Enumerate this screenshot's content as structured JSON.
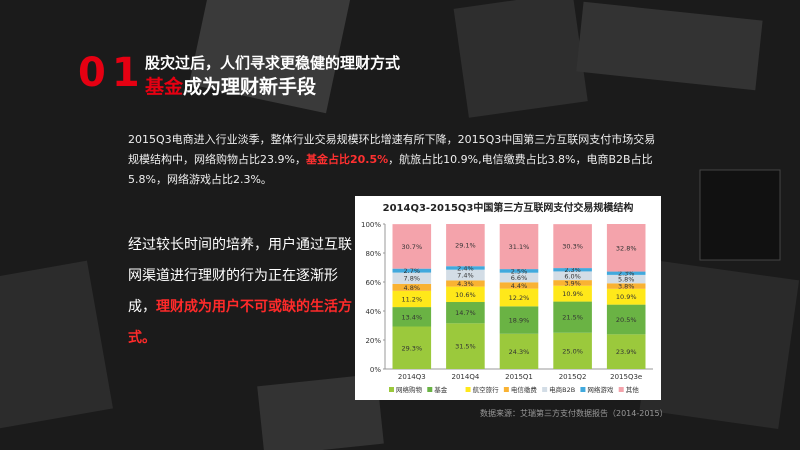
{
  "heading": {
    "number": "01",
    "line1": "股灾过后，人们寻求更稳健的理财方式",
    "line2_red": "基金",
    "line2_rest": "成为理财新手段"
  },
  "paragraph": {
    "part1": "2015Q3电商进入行业淡季，整体行业交易规模环比增速有所下降，2015Q3中国第三方互联网支付市场交易规模结构中，网络购物占比23.9%，",
    "highlight": "基金占比20.5%",
    "part2": "，航旅占比10.9%,电信缴费占比3.8%，电商B2B占比5.8%，网络游戏占比2.3%。"
  },
  "side_text": {
    "part1": "经过较长时间的培养，用户通过互联网渠道进行理财的行为正在逐渐形成，",
    "highlight": "理财成为用户不可或缺的生活方式。"
  },
  "source": "数据来源：艾瑞第三方支付数据报告（2014-2015）",
  "chart_data": {
    "type": "stacked_bar",
    "title": "2014Q3-2015Q3中国第三方互联网支付交易规模结构",
    "categories": [
      "2014Q3",
      "2014Q4",
      "2015Q1",
      "2015Q2",
      "2015Q3e"
    ],
    "ylim": [
      0,
      100
    ],
    "yticks": [
      {
        "value": 0,
        "label": "0%"
      },
      {
        "value": 20,
        "label": "20%"
      },
      {
        "value": 40,
        "label": "40%"
      },
      {
        "value": 60,
        "label": "60%"
      },
      {
        "value": 80,
        "label": "80%"
      },
      {
        "value": 100,
        "label": "100%"
      }
    ],
    "series": [
      {
        "name": "网络购物",
        "color": "#9bc93c",
        "values": [
          29.3,
          31.5,
          24.3,
          25.0,
          23.9
        ],
        "value_labels": [
          "29.3%",
          "31.5%",
          "24.3%",
          "25.0%",
          "23.9%"
        ]
      },
      {
        "name": "基金",
        "color": "#6ab344",
        "values": [
          13.4,
          14.7,
          18.9,
          21.5,
          20.5
        ],
        "value_labels": [
          "13.4%",
          "14.7%",
          "18.9%",
          "21.5%",
          "20.5%"
        ]
      },
      {
        "name": "航空旅行",
        "color": "#ffe81a",
        "values": [
          11.2,
          10.6,
          12.2,
          10.9,
          10.9
        ],
        "value_labels": [
          "11.2%",
          "10.6%",
          "12.2%",
          "10.9%",
          "10.9%"
        ]
      },
      {
        "name": "电信缴费",
        "color": "#f9b233",
        "values": [
          4.8,
          4.3,
          4.4,
          3.9,
          3.8
        ],
        "value_labels": [
          "4.8%",
          "4.3%",
          "4.4%",
          "3.9%",
          "3.8%"
        ]
      },
      {
        "name": "电商B2B",
        "color": "#d3dde6",
        "values": [
          7.8,
          7.4,
          6.6,
          6.0,
          5.8
        ],
        "value_labels": [
          "7.8%",
          "7.4%",
          "6.6%",
          "6.0%",
          "5.8%"
        ]
      },
      {
        "name": "网络游戏",
        "color": "#41a9dd",
        "values": [
          2.7,
          2.4,
          2.5,
          2.3,
          2.3
        ],
        "value_labels": [
          "2.7%",
          "2.4%",
          "2.5%",
          "2.3%",
          "2.3%"
        ]
      },
      {
        "name": "其他",
        "color": "#f4a3ab",
        "values": [
          30.7,
          29.1,
          31.1,
          30.3,
          32.8
        ],
        "value_labels": [
          "30.7%",
          "29.1%",
          "31.1%",
          "30.3%",
          "32.8%"
        ]
      }
    ]
  }
}
